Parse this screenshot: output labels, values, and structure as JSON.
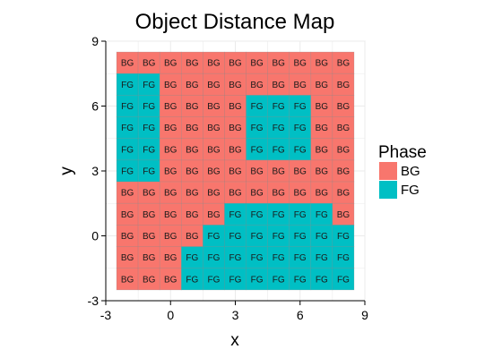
{
  "chart_data": {
    "type": "heatmap",
    "title": "Object Distance Map",
    "xlabel": "x",
    "ylabel": "y",
    "xlim": [
      -3,
      9
    ],
    "ylim": [
      -3,
      9
    ],
    "xticks": [
      "-3",
      "0",
      "3",
      "6",
      "9"
    ],
    "yticks": [
      "-3",
      "0",
      "3",
      "6",
      "9"
    ],
    "x": [
      -2,
      -1,
      0,
      1,
      2,
      3,
      4,
      5,
      6,
      7,
      8
    ],
    "y": [
      8,
      7,
      6,
      5,
      4,
      3,
      2,
      1,
      0,
      -1,
      -2
    ],
    "grid": true,
    "legend": {
      "title": "Phase",
      "placement": "right",
      "entries": [
        {
          "label": "BG",
          "color": "#F8766D"
        },
        {
          "label": "FG",
          "color": "#00BFC4"
        }
      ]
    },
    "cells": [
      [
        "BG",
        "BG",
        "BG",
        "BG",
        "BG",
        "BG",
        "BG",
        "BG",
        "BG",
        "BG",
        "BG"
      ],
      [
        "FG",
        "FG",
        "BG",
        "BG",
        "BG",
        "BG",
        "BG",
        "BG",
        "BG",
        "BG",
        "BG"
      ],
      [
        "FG",
        "FG",
        "BG",
        "BG",
        "BG",
        "BG",
        "FG",
        "FG",
        "FG",
        "BG",
        "BG"
      ],
      [
        "FG",
        "FG",
        "BG",
        "BG",
        "BG",
        "BG",
        "FG",
        "FG",
        "FG",
        "BG",
        "BG"
      ],
      [
        "FG",
        "FG",
        "BG",
        "BG",
        "BG",
        "BG",
        "FG",
        "FG",
        "FG",
        "BG",
        "BG"
      ],
      [
        "FG",
        "FG",
        "BG",
        "BG",
        "BG",
        "BG",
        "BG",
        "BG",
        "BG",
        "BG",
        "BG"
      ],
      [
        "BG",
        "BG",
        "BG",
        "BG",
        "BG",
        "BG",
        "BG",
        "BG",
        "BG",
        "BG",
        "BG"
      ],
      [
        "BG",
        "BG",
        "BG",
        "BG",
        "BG",
        "FG",
        "FG",
        "FG",
        "FG",
        "FG",
        "BG"
      ],
      [
        "BG",
        "BG",
        "BG",
        "BG",
        "FG",
        "FG",
        "FG",
        "FG",
        "FG",
        "FG",
        "FG"
      ],
      [
        "BG",
        "BG",
        "BG",
        "FG",
        "FG",
        "FG",
        "FG",
        "FG",
        "FG",
        "FG",
        "FG"
      ],
      [
        "BG",
        "BG",
        "BG",
        "FG",
        "FG",
        "FG",
        "FG",
        "FG",
        "FG",
        "FG",
        "FG"
      ]
    ]
  }
}
